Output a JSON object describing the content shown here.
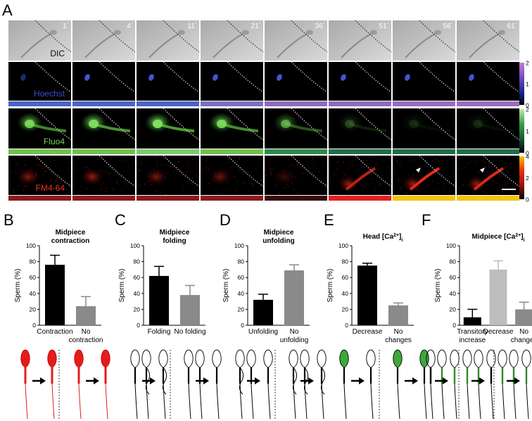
{
  "panel_a": {
    "letter": "A",
    "times": [
      "1´",
      "4´",
      "11´",
      "21´",
      "36´",
      "51´",
      "56´",
      "61´"
    ],
    "rows": [
      {
        "label": "DIC",
        "label_color": "#111111",
        "kind": "dic",
        "bar_colors": []
      },
      {
        "label": "Hoechst",
        "label_color": "#3a4fd1",
        "kind": "hoechst",
        "bar_colors": [
          "#4a63c9",
          "#4a63c9",
          "#4a63c9",
          "#7a6fc4",
          "#8e6cc0",
          "#8e6cc0",
          "#9a6cbf",
          "#9a6cbf"
        ],
        "cbar": {
          "gradient": [
            "#000000",
            "#1d2a9a",
            "#7a4fc0",
            "#c87ad8"
          ],
          "ticks": [
            "2",
            "1",
            "0"
          ]
        }
      },
      {
        "label": "Fluo4",
        "label_color": "#7ed35a",
        "kind": "fluo",
        "bar_colors": [
          "#6fc14a",
          "#6fc14a",
          "#7ccc6a",
          "#6fc14a",
          "#2f8a4a",
          "#1f6e4a",
          "#1f6e4a",
          "#1f6e4a"
        ],
        "cbar": {
          "gradient": [
            "#000000",
            "#1a5a3a",
            "#3aa04a",
            "#bfe8b0"
          ],
          "ticks": [
            "2",
            "1",
            "0"
          ]
        }
      },
      {
        "label": "FM4-64",
        "label_color": "#e8331e",
        "kind": "fm",
        "bar_colors": [
          "#8a1a1a",
          "#8a1a1a",
          "#8a1a1a",
          "#8a1a1a",
          "#3a0a0a",
          "#e02020",
          "#f2c40c",
          "#f2c40c"
        ],
        "cbar": {
          "gradient": [
            "#000000",
            "#a01010",
            "#e83010",
            "#f2c40c"
          ],
          "ticks": [
            "4",
            "2",
            "0"
          ]
        }
      }
    ]
  },
  "bar_panels": [
    {
      "letter": "B",
      "title": "Midpiece contraction",
      "title_lines": [
        "Midpiece",
        "contraction"
      ],
      "ylabel": "Sperm  (%)",
      "yticks": [
        "0",
        "20",
        "40",
        "60",
        "80",
        "100"
      ],
      "schematic": "contraction"
    },
    {
      "letter": "C",
      "title": "Midpiece folding",
      "title_lines": [
        "Midpiece",
        "folding"
      ],
      "ylabel": "Sperm  (%)",
      "yticks": [
        "0",
        "20",
        "40",
        "60",
        "80",
        "100"
      ],
      "schematic": "folding"
    },
    {
      "letter": "D",
      "title": "Midpiece unfolding",
      "title_lines": [
        "Midpiece",
        "unfolding"
      ],
      "ylabel": "Sperm  (%)",
      "yticks": [
        "0",
        "20",
        "40",
        "60",
        "80",
        "100"
      ],
      "schematic": "unfolding"
    },
    {
      "letter": "E",
      "title": "Head [Ca2+]i",
      "title_lines": [
        "Head [Ca",
        "2+",
        "]",
        "i"
      ],
      "ylabel": "Sperm  (%)",
      "yticks": [
        "0",
        "20",
        "40",
        "60",
        "80",
        "100"
      ],
      "schematic": "head"
    },
    {
      "letter": "F",
      "title": "Midpiece [Ca2+]i",
      "title_lines": [
        "Midpiece [Ca",
        "2+",
        "]",
        "i"
      ],
      "ylabel": "Sperm  (%)",
      "yticks": [
        "0",
        "20",
        "40",
        "60",
        "80",
        "100"
      ],
      "schematic": "midpiece"
    }
  ],
  "chart_data": [
    {
      "type": "bar",
      "panel": "B",
      "title": "Midpiece contraction",
      "ylabel": "Sperm (%)",
      "ylim": [
        0,
        100
      ],
      "categories": [
        [
          "Contraction"
        ],
        [
          "No",
          "contraction"
        ]
      ],
      "values": [
        76,
        24
      ],
      "errors": [
        12,
        12
      ],
      "colors": [
        "#000000",
        "#8a8a8a"
      ]
    },
    {
      "type": "bar",
      "panel": "C",
      "title": "Midpiece folding",
      "ylabel": "Sperm (%)",
      "ylim": [
        0,
        100
      ],
      "categories": [
        [
          "Folding"
        ],
        [
          "No folding"
        ]
      ],
      "values": [
        62,
        38
      ],
      "errors": [
        12,
        12
      ],
      "colors": [
        "#000000",
        "#8a8a8a"
      ]
    },
    {
      "type": "bar",
      "panel": "D",
      "title": "Midpiece unfolding",
      "ylabel": "Sperm (%)",
      "ylim": [
        0,
        100
      ],
      "categories": [
        [
          "Unfolding"
        ],
        [
          "No",
          "unfolding"
        ]
      ],
      "values": [
        32,
        69
      ],
      "errors": [
        7,
        7
      ],
      "colors": [
        "#000000",
        "#8a8a8a"
      ]
    },
    {
      "type": "bar",
      "panel": "E",
      "title": "Head [Ca2+]i",
      "ylabel": "Sperm (%)",
      "ylim": [
        0,
        100
      ],
      "categories": [
        [
          "Decrease"
        ],
        [
          "No",
          "changes"
        ]
      ],
      "values": [
        75,
        25
      ],
      "errors": [
        3,
        3
      ],
      "colors": [
        "#000000",
        "#8a8a8a"
      ]
    },
    {
      "type": "bar",
      "panel": "F",
      "title": "Midpiece [Ca2+]i",
      "ylabel": "Sperm (%)",
      "ylim": [
        0,
        100
      ],
      "categories": [
        [
          "Transitory",
          "increase"
        ],
        [
          "Decrease"
        ],
        [
          "No",
          "changes"
        ]
      ],
      "values": [
        10,
        70,
        20
      ],
      "errors": [
        10,
        11,
        9
      ],
      "colors": [
        "#000000",
        "#bdbdbd",
        "#8a8a8a"
      ]
    }
  ]
}
